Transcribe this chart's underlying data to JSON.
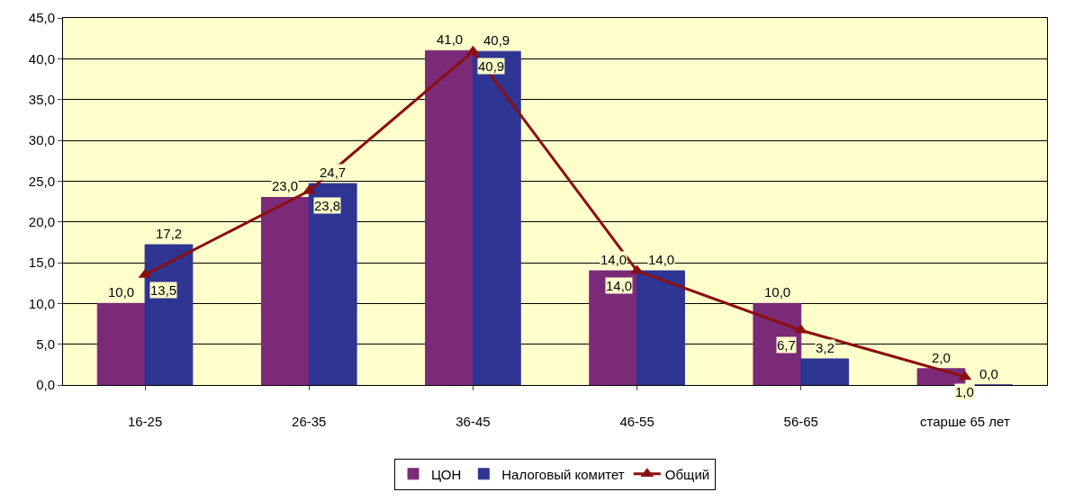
{
  "chart_data": {
    "type": "bar",
    "categories": [
      "16-25",
      "26-35",
      "36-45",
      "46-55",
      "56-65",
      "старше 65 лет"
    ],
    "series": [
      {
        "name": "ЦОН",
        "color": "#7b2a78",
        "values": [
          10.0,
          23.0,
          41.0,
          14.0,
          10.0,
          2.0
        ],
        "value_labels": [
          "10,0",
          "23,0",
          "41,0",
          "14,0",
          "10,0",
          "2,0"
        ]
      },
      {
        "name": "Налоговый комитет",
        "color": "#2e3592",
        "values": [
          17.2,
          24.7,
          40.9,
          14.0,
          3.2,
          0.0
        ],
        "value_labels": [
          "17,2",
          "24,7",
          "40,9",
          "14,0",
          "3,2",
          "0,0"
        ]
      },
      {
        "name": "Общий",
        "type": "line",
        "color": "#8b0f0f",
        "marker": "triangle",
        "line_style": "solid",
        "values": [
          13.5,
          23.8,
          40.9,
          14.0,
          6.7,
          1.0
        ],
        "value_labels": [
          "13,5",
          "23,8",
          "40,9",
          "14,0",
          "6,7",
          "1,0"
        ]
      }
    ],
    "ylim": [
      0,
      45
    ],
    "yticks": [
      {
        "value": 0,
        "label": "0,0"
      },
      {
        "value": 5,
        "label": "5,0"
      },
      {
        "value": 10,
        "label": "10,0"
      },
      {
        "value": 15,
        "label": "15,0"
      },
      {
        "value": 20,
        "label": "20,0"
      },
      {
        "value": 25,
        "label": "25,0"
      },
      {
        "value": 30,
        "label": "30,0"
      },
      {
        "value": 35,
        "label": "35,0"
      },
      {
        "value": 40,
        "label": "40,0"
      },
      {
        "value": 45,
        "label": "45,0"
      }
    ],
    "grid": "y",
    "legend": "bottom"
  }
}
